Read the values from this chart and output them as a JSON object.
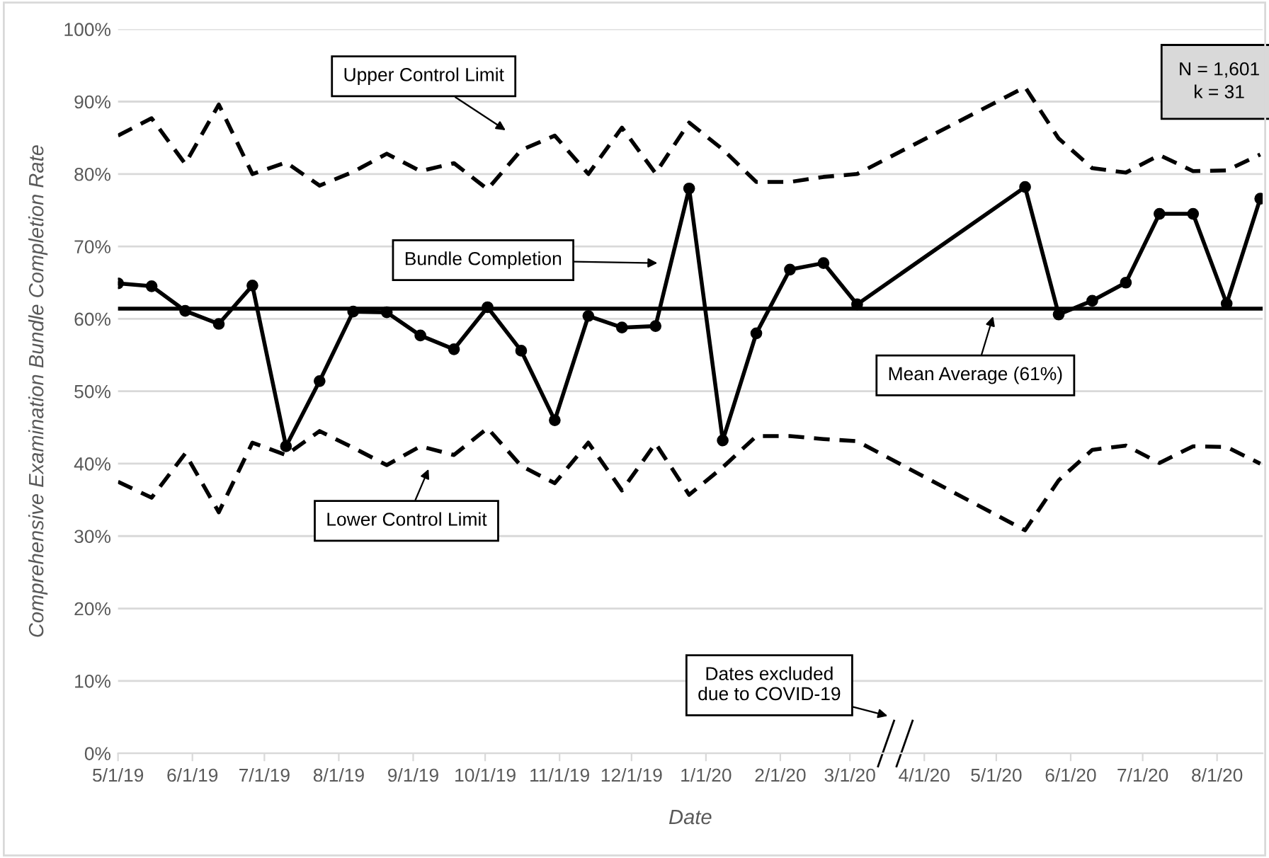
{
  "chart_data": {
    "type": "line",
    "ylabel": "Comprehensive Examination Bundle Completion Rate",
    "xlabel": "Date",
    "x": [
      "2019-05-01",
      "2019-05-15",
      "2019-05-29",
      "2019-06-12",
      "2019-06-26",
      "2019-07-10",
      "2019-07-24",
      "2019-08-07",
      "2019-08-21",
      "2019-09-04",
      "2019-09-18",
      "2019-10-02",
      "2019-10-16",
      "2019-10-30",
      "2019-11-13",
      "2019-11-27",
      "2019-12-11",
      "2019-12-25",
      "2020-01-08",
      "2020-01-22",
      "2020-02-05",
      "2020-02-19",
      "2020-03-04",
      "2020-05-13",
      "2020-05-27",
      "2020-06-10",
      "2020-06-24",
      "2020-07-08",
      "2020-07-22",
      "2020-08-05",
      "2020-08-19"
    ],
    "series": [
      {
        "color": "#000000",
        "marker": "circle",
        "line_style": "solid",
        "values": [
          64.9,
          64.5,
          61.1,
          59.3,
          64.6,
          42.4,
          51.4,
          61.0,
          60.9,
          57.7,
          55.8,
          61.6,
          55.6,
          46.0,
          60.4,
          58.8,
          59.0,
          78.0,
          43.2,
          58.0,
          66.8,
          67.7,
          62.0,
          78.2,
          60.6,
          62.5,
          65.0,
          74.5,
          74.5,
          62.1,
          76.6
        ]
      },
      {
        "color": "#000000",
        "marker": "none",
        "line_style": "dashed",
        "values": [
          85.3,
          87.7,
          81.4,
          89.6,
          80.0,
          81.6,
          78.4,
          80.3,
          82.8,
          80.4,
          81.5,
          77.9,
          83.3,
          85.3,
          80.0,
          86.4,
          80.1,
          87.1,
          83.4,
          78.9,
          78.9,
          79.6,
          80.0,
          92.0,
          84.9,
          80.8,
          80.2,
          82.6,
          80.4,
          80.5,
          82.7
        ]
      },
      {
        "color": "#000000",
        "marker": "none",
        "line_style": "dashed",
        "values": [
          37.5,
          35.3,
          41.4,
          33.3,
          42.9,
          41.2,
          44.5,
          42.2,
          39.8,
          42.4,
          41.2,
          44.9,
          39.7,
          37.3,
          42.9,
          36.3,
          42.8,
          35.7,
          39.5,
          43.8,
          43.8,
          43.4,
          43.1,
          30.8,
          37.7,
          41.9,
          42.5,
          40.1,
          42.4,
          42.3,
          40.0
        ]
      }
    ],
    "ref_lines": [
      {
        "axis": "y",
        "value": 61.4,
        "label": "Mean Average (61%)",
        "color": "#000000",
        "line_style": "solid"
      }
    ],
    "annotations": [
      "Upper Control Limit",
      "Bundle Completion",
      "Lower Control Limit",
      "Dates excluded\ndue to COVID-19",
      "N = 1,601\nk = 31"
    ],
    "xlim": [
      "2019-05-01",
      "2020-08-20"
    ],
    "xticks": [
      {
        "value": "2019-05-01",
        "label": "5/1/19"
      },
      {
        "value": "2019-06-01",
        "label": "6/1/19"
      },
      {
        "value": "2019-07-01",
        "label": "7/1/19"
      },
      {
        "value": "2019-08-01",
        "label": "8/1/19"
      },
      {
        "value": "2019-09-01",
        "label": "9/1/19"
      },
      {
        "value": "2019-10-01",
        "label": "10/1/19"
      },
      {
        "value": "2019-11-01",
        "label": "11/1/19"
      },
      {
        "value": "2019-12-01",
        "label": "12/1/19"
      },
      {
        "value": "2020-01-01",
        "label": "1/1/20"
      },
      {
        "value": "2020-02-01",
        "label": "2/1/20"
      },
      {
        "value": "2020-03-01",
        "label": "3/1/20"
      },
      {
        "value": "2020-04-01",
        "label": "4/1/20"
      },
      {
        "value": "2020-05-01",
        "label": "5/1/20"
      },
      {
        "value": "2020-06-01",
        "label": "6/1/20"
      },
      {
        "value": "2020-07-01",
        "label": "7/1/20"
      },
      {
        "value": "2020-08-01",
        "label": "8/1/20"
      }
    ],
    "ylim": [
      0,
      100
    ],
    "yticks": [
      {
        "value": 0,
        "label": "0%"
      },
      {
        "value": 10,
        "label": "10%"
      },
      {
        "value": 20,
        "label": "20%"
      },
      {
        "value": 30,
        "label": "30%"
      },
      {
        "value": 40,
        "label": "40%"
      },
      {
        "value": 50,
        "label": "50%"
      },
      {
        "value": 60,
        "label": "60%"
      },
      {
        "value": 70,
        "label": "70%"
      },
      {
        "value": 80,
        "label": "80%"
      },
      {
        "value": 90,
        "label": "90%"
      },
      {
        "value": 100,
        "label": "100%"
      }
    ],
    "grid": "y"
  }
}
